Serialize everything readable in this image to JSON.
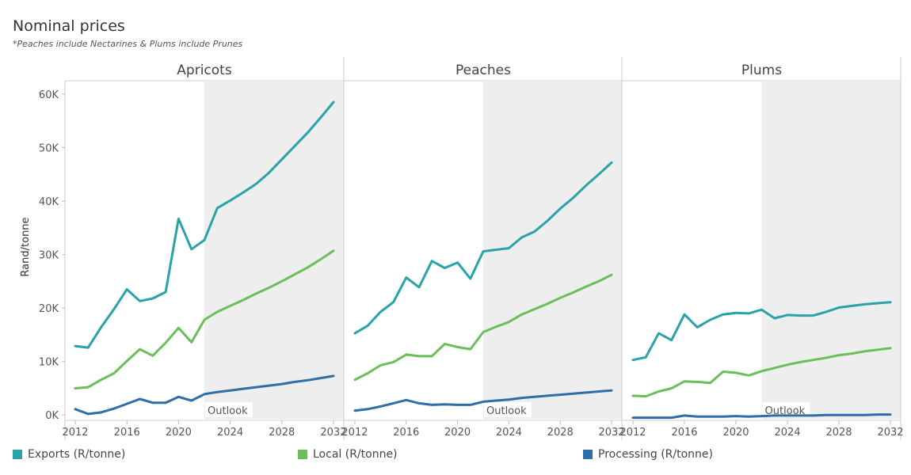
{
  "title": "Nominal prices",
  "subtitle": "*Peaches include Nectarines & Plums include Prunes",
  "colors": {
    "exports": "#2aa3a8",
    "local": "#6abf5a",
    "processing": "#2e6da8",
    "outlook_bg": "#eeeeee"
  },
  "legend": [
    {
      "label": "Exports (R/tonne)",
      "color": "#2aa3a8"
    },
    {
      "label": "Local (R/tonne)",
      "color": "#6abf5a"
    },
    {
      "label": "Processing (R/tonne)",
      "color": "#2e6da8"
    }
  ],
  "chart_data": {
    "type": "line",
    "title": "Nominal prices",
    "ylabel": "Rand/tonne",
    "xlabel": "",
    "ylim": [
      -1000,
      62500
    ],
    "xlim": [
      2011.2,
      2032.8
    ],
    "yticks": [
      0,
      10000,
      20000,
      30000,
      40000,
      50000,
      60000
    ],
    "ytick_labels": [
      "0K",
      "10K",
      "20K",
      "30K",
      "40K",
      "50K",
      "60K"
    ],
    "xticks": [
      2012,
      2016,
      2020,
      2024,
      2028,
      2032
    ],
    "xtick_labels": [
      "2012",
      "2016",
      "2020",
      "2024",
      "2028",
      "2032"
    ],
    "outlook_start": 2022,
    "outlook_label": "Outlook",
    "years": [
      2012,
      2013,
      2014,
      2015,
      2016,
      2017,
      2018,
      2019,
      2020,
      2021,
      2022,
      2023,
      2024,
      2025,
      2026,
      2027,
      2028,
      2029,
      2030,
      2031,
      2032
    ],
    "panels": [
      {
        "name": "Apricots",
        "series": [
          {
            "name": "Exports (R/tonne)",
            "key": "exports",
            "values": [
              12900,
              12600,
              16400,
              19800,
              23500,
              21300,
              21800,
              23000,
              36700,
              31000,
              32700,
              38700,
              40100,
              41600,
              43200,
              45300,
              47800,
              50300,
              52800,
              55600,
              58500
            ]
          },
          {
            "name": "Local (R/tonne)",
            "key": "local",
            "values": [
              5000,
              5200,
              6600,
              7800,
              10100,
              12300,
              11100,
              13500,
              16300,
              13600,
              17800,
              19300,
              20400,
              21500,
              22700,
              23800,
              25000,
              26300,
              27600,
              29100,
              30700
            ]
          },
          {
            "name": "Processing (R/tonne)",
            "key": "processing",
            "values": [
              1100,
              200,
              500,
              1200,
              2100,
              3000,
              2300,
              2300,
              3400,
              2700,
              3900,
              4300,
              4600,
              4900,
              5200,
              5500,
              5800,
              6200,
              6500,
              6900,
              7300
            ]
          }
        ]
      },
      {
        "name": "Peaches",
        "series": [
          {
            "name": "Exports (R/tonne)",
            "key": "exports",
            "values": [
              15300,
              16700,
              19300,
              21100,
              25700,
              23900,
              28800,
              27500,
              28500,
              25500,
              30600,
              30900,
              31200,
              33200,
              34300,
              36300,
              38600,
              40600,
              42900,
              45000,
              47200
            ]
          },
          {
            "name": "Local (R/tonne)",
            "key": "local",
            "values": [
              6600,
              7800,
              9300,
              9900,
              11300,
              11000,
              11000,
              13300,
              12700,
              12300,
              15500,
              16500,
              17400,
              18800,
              19800,
              20800,
              21900,
              22900,
              24000,
              25000,
              26200
            ]
          },
          {
            "name": "Processing (R/tonne)",
            "key": "processing",
            "values": [
              800,
              1100,
              1600,
              2200,
              2800,
              2200,
              1900,
              2000,
              1900,
              1900,
              2500,
              2700,
              2900,
              3200,
              3400,
              3600,
              3800,
              4000,
              4200,
              4400,
              4600
            ]
          }
        ]
      },
      {
        "name": "Plums",
        "series": [
          {
            "name": "Exports (R/tonne)",
            "key": "exports",
            "values": [
              10300,
              10800,
              15300,
              14000,
              18800,
              16400,
              17800,
              18800,
              19100,
              19000,
              19700,
              18100,
              18700,
              18600,
              18600,
              19300,
              20100,
              20400,
              20700,
              20900,
              21100
            ]
          },
          {
            "name": "Local (R/tonne)",
            "key": "local",
            "values": [
              3600,
              3500,
              4400,
              5000,
              6300,
              6200,
              6000,
              8100,
              7900,
              7400,
              8200,
              8800,
              9400,
              9900,
              10300,
              10700,
              11200,
              11500,
              11900,
              12200,
              12500
            ]
          },
          {
            "name": "Processing (R/tonne)",
            "key": "processing",
            "values": [
              -500,
              -500,
              -500,
              -500,
              -100,
              -300,
              -300,
              -300,
              -200,
              -300,
              -200,
              -100,
              -100,
              -100,
              -100,
              0,
              0,
              0,
              0,
              100,
              100
            ]
          }
        ]
      }
    ]
  }
}
